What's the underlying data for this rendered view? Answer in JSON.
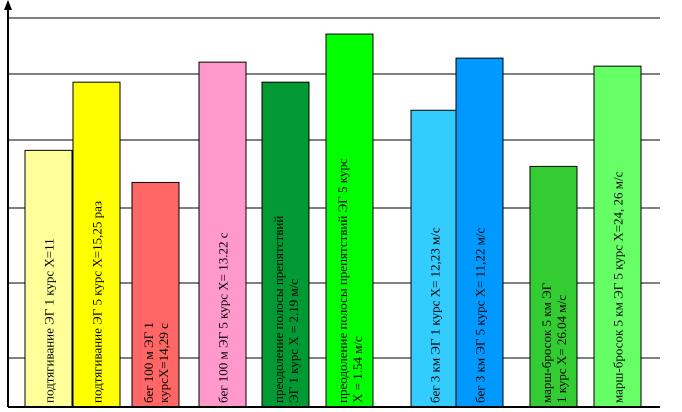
{
  "chart_data": {
    "type": "bar",
    "title": "",
    "xlabel": "",
    "ylabel": "",
    "grid": true,
    "legend": "none",
    "bars": [
      {
        "label_lines": [
          "подтягивание ЭГ 1 курс Х=11"
        ],
        "value": 0.64,
        "color": "#ffff99"
      },
      {
        "label_lines": [
          "подтягивание ЭГ 5 курс Х=15,25 раз"
        ],
        "value": 0.81,
        "color": "#ffff00"
      },
      {
        "label_lines": [
          "бег 100 м ЭГ 1",
          "курсХ=14,29 с"
        ],
        "value": 0.56,
        "color": "#ff6666"
      },
      {
        "label_lines": [
          "бег 100 м ЭГ 5 курс Х= 13.22 с"
        ],
        "value": 0.86,
        "color": "#ff99cc"
      },
      {
        "label_lines": [
          "преодоление полосы препятствий",
          "ЭГ 1 курс Х = 2.19 м/с"
        ],
        "value": 0.81,
        "color": "#009933"
      },
      {
        "label_lines": [
          "преодоление полосы препятствий ЭГ 5 курс",
          "Х = 1.54 м/с"
        ],
        "value": 0.93,
        "color": "#00ff00"
      },
      {
        "label_lines": [
          "бег 3 км ЭГ 1 курс Х= 12,23 м/с"
        ],
        "value": 0.74,
        "color": "#33ccff"
      },
      {
        "label_lines": [
          "бег 3 км ЭГ 5 курс Х= 11,22 м/с"
        ],
        "value": 0.87,
        "color": "#0099ff"
      },
      {
        "label_lines": [
          "марш-бросок 5 км ЭГ",
          "1 курс Х= 26.04 м/с"
        ],
        "value": 0.6,
        "color": "#33cc33"
      },
      {
        "label_lines": [
          "марш-бросок 5 км ЭГ 5 курс Х=24, 26 м/с"
        ],
        "value": 0.85,
        "color": "#66ff66"
      }
    ]
  }
}
